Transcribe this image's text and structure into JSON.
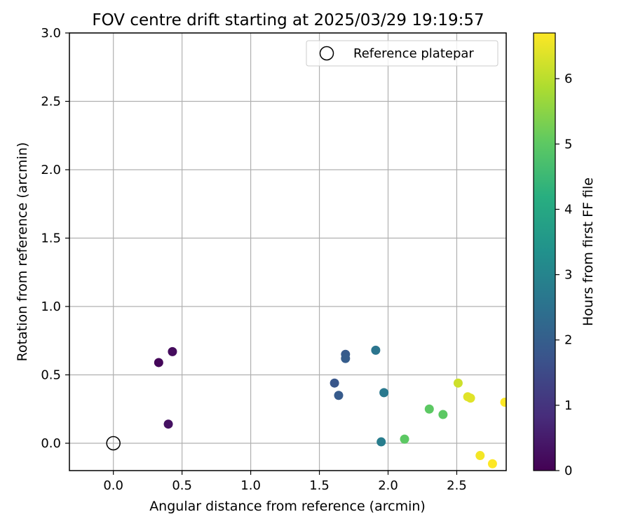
{
  "chart_data": {
    "type": "scatter",
    "title": "FOV centre drift starting at 2025/03/29 19:19:57",
    "xlabel": "Angular distance from reference (arcmin)",
    "ylabel": "Rotation from reference (arcmin)",
    "xlim": [
      -0.32,
      2.86
    ],
    "ylim": [
      -0.2,
      3.0
    ],
    "xticks": [
      "0.0",
      "0.5",
      "1.0",
      "1.5",
      "2.0",
      "2.5"
    ],
    "yticks": [
      "0.0",
      "0.5",
      "1.0",
      "1.5",
      "2.0",
      "2.5",
      "3.0"
    ],
    "grid": true,
    "legend": {
      "position": "upper-right",
      "label": "Reference platepar"
    },
    "reference_point": {
      "x": 0.0,
      "y": 0.0
    },
    "colorbar": {
      "label": "Hours from first FF file",
      "colormap": "viridis",
      "range": [
        0,
        6.7
      ],
      "ticks": [
        "0",
        "1",
        "2",
        "3",
        "4",
        "5",
        "6"
      ]
    },
    "points": [
      {
        "x": 0.33,
        "y": 0.59,
        "hours": 0.1
      },
      {
        "x": 0.43,
        "y": 0.67,
        "hours": 0.2
      },
      {
        "x": 0.4,
        "y": 0.14,
        "hours": 0.3
      },
      {
        "x": 1.61,
        "y": 0.44,
        "hours": 1.8
      },
      {
        "x": 1.64,
        "y": 0.35,
        "hours": 1.9
      },
      {
        "x": 1.69,
        "y": 0.65,
        "hours": 1.9
      },
      {
        "x": 1.69,
        "y": 0.62,
        "hours": 1.95
      },
      {
        "x": 1.91,
        "y": 0.68,
        "hours": 2.6
      },
      {
        "x": 1.97,
        "y": 0.37,
        "hours": 2.7
      },
      {
        "x": 1.95,
        "y": 0.01,
        "hours": 2.8
      },
      {
        "x": 2.12,
        "y": 0.03,
        "hours": 5.0
      },
      {
        "x": 2.3,
        "y": 0.25,
        "hours": 5.0
      },
      {
        "x": 2.4,
        "y": 0.21,
        "hours": 5.0
      },
      {
        "x": 2.51,
        "y": 0.44,
        "hours": 6.2
      },
      {
        "x": 2.58,
        "y": 0.34,
        "hours": 6.4
      },
      {
        "x": 2.6,
        "y": 0.33,
        "hours": 6.4
      },
      {
        "x": 2.67,
        "y": -0.09,
        "hours": 6.6
      },
      {
        "x": 2.76,
        "y": -0.15,
        "hours": 6.7
      },
      {
        "x": 2.85,
        "y": 0.3,
        "hours": 6.7
      }
    ]
  }
}
